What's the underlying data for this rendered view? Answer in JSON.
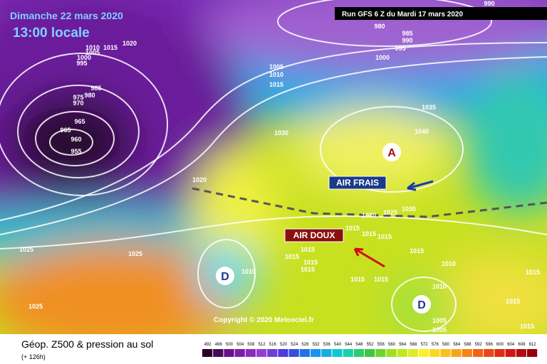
{
  "header": {
    "title": "Dimanche 22 mars 2020",
    "time": "13:00 locale",
    "run": "Run GFS 6 Z du Mardi 17 mars 2020"
  },
  "annotations": {
    "air_frais": "AIR FRAIS",
    "air_doux": "AIR DOUX",
    "high": "A",
    "low_1": "D",
    "low_2": "D"
  },
  "isobar_labels": [
    "990",
    "980",
    "985",
    "990",
    "995",
    "1000",
    "1020",
    "1015",
    "1010",
    "1005",
    "1000",
    "995",
    "985",
    "980",
    "975",
    "970",
    "965",
    "965",
    "960",
    "955",
    "1005",
    "1010",
    "1015",
    "1035",
    "1030",
    "1040",
    "1020",
    "1030",
    "1020",
    "1025",
    "1015",
    "1015",
    "1015",
    "1025",
    "1025",
    "1015",
    "1015",
    "1015",
    "1015",
    "1010",
    "1015",
    "1010",
    "1015",
    "1015",
    "1015",
    "1010",
    "1015",
    "1025",
    "1005",
    "1005",
    "1015"
  ],
  "copyright": "Copyright © 2020 Meteociel.fr",
  "footer": {
    "title": "Géop. Z500 & pression au sol",
    "lead": "(+ 126h)"
  },
  "scale": {
    "labels": [
      "492",
      "496",
      "500",
      "504",
      "508",
      "512",
      "516",
      "520",
      "524",
      "528",
      "532",
      "536",
      "540",
      "544",
      "548",
      "552",
      "556",
      "560",
      "564",
      "568",
      "572",
      "576",
      "580",
      "584",
      "588",
      "592",
      "596",
      "600",
      "604",
      "608",
      "612"
    ]
  }
}
